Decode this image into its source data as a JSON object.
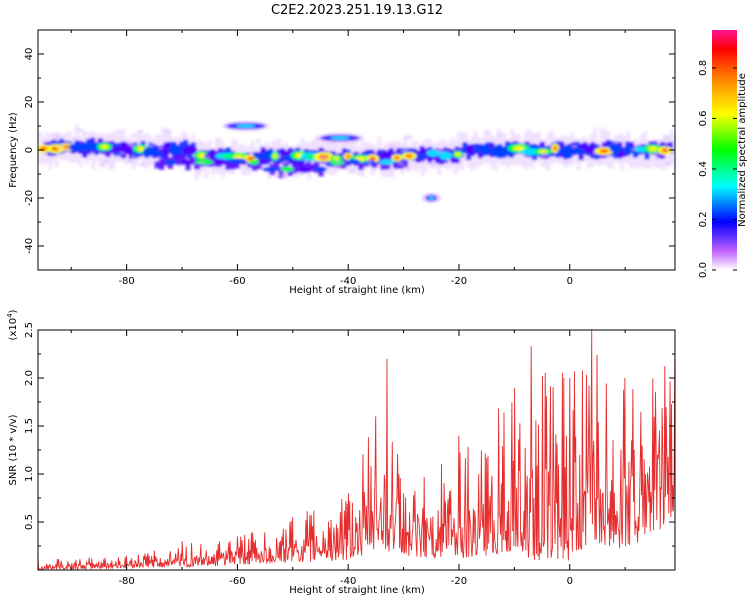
{
  "title": "C2E2.2023.251.19.13.G12",
  "chart_data": [
    {
      "type": "heatmap",
      "xlabel": "Height of straight line (km)",
      "ylabel": "Frequency (Hz)",
      "xlim": [
        -96,
        19
      ],
      "ylim": [
        -50,
        50
      ],
      "xticks": [
        -80,
        -60,
        -40,
        -20,
        0
      ],
      "yticks": [
        -40,
        -20,
        0,
        20,
        40
      ],
      "colorbar": {
        "label": "Normalized spectral amplitude",
        "range": [
          0.0,
          0.95
        ],
        "ticks": [
          0.0,
          0.2,
          0.4,
          0.6,
          0.8
        ]
      },
      "features": [
        {
          "x_start": -96,
          "x_end": 19,
          "freq_hz": 0,
          "note": "main spectral band near 0 Hz"
        },
        {
          "x_start": -62,
          "x_end": -55,
          "freq_hz": 10
        },
        {
          "x_start": -45,
          "x_end": -38,
          "freq_hz": 5
        },
        {
          "x_start": -26,
          "x_end": -24,
          "freq_hz": -20
        }
      ],
      "colors": {
        "low": "#7a00ff",
        "mid": "#00ff00",
        "high": "#ff0000"
      }
    },
    {
      "type": "line",
      "xlabel": "Height of straight line (km)",
      "ylabel": "SNR (10 * v/v)",
      "y_multiplier_label": "(x10^4)",
      "xlim": [
        -96,
        19
      ],
      "ylim": [
        0,
        2.5
      ],
      "xticks": [
        -80,
        -60,
        -40,
        -20,
        0
      ],
      "yticks": [
        0.5,
        1.0,
        1.5,
        2.0,
        2.5
      ],
      "series": [
        {
          "color": "#e62e2e",
          "envelope": [
            {
              "x": -96,
              "min": 0.0,
              "max": 0.12
            },
            {
              "x": -80,
              "min": 0.02,
              "max": 0.15
            },
            {
              "x": -70,
              "min": 0.03,
              "max": 0.3
            },
            {
              "x": -60,
              "min": 0.05,
              "max": 0.35
            },
            {
              "x": -50,
              "min": 0.08,
              "max": 0.55
            },
            {
              "x": -40,
              "min": 0.1,
              "max": 0.8
            },
            {
              "x": -35,
              "min": 0.2,
              "max": 1.6
            },
            {
              "x": -33,
              "min": 0.2,
              "max": 2.2
            },
            {
              "x": -30,
              "min": 0.15,
              "max": 0.8
            },
            {
              "x": -20,
              "min": 0.1,
              "max": 1.4
            },
            {
              "x": -10,
              "min": 0.2,
              "max": 1.9
            },
            {
              "x": -7,
              "min": 0.1,
              "max": 2.33
            },
            {
              "x": 0,
              "min": 0.1,
              "max": 2.0
            },
            {
              "x": 4,
              "min": 0.3,
              "max": 2.5
            },
            {
              "x": 10,
              "min": 0.2,
              "max": 2.0
            },
            {
              "x": 19,
              "min": 0.5,
              "max": 2.2
            }
          ]
        }
      ]
    }
  ]
}
